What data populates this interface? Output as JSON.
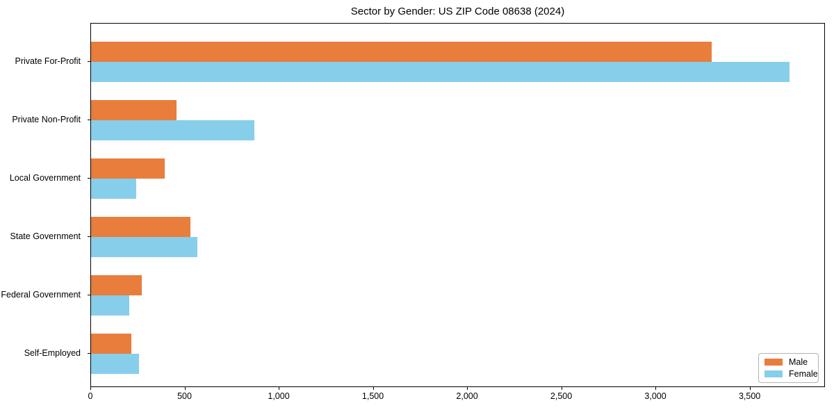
{
  "figure": {
    "title": "Sector by Gender: US ZIP Code 08638 (2024)"
  },
  "chart_data": {
    "type": "bar",
    "orientation": "horizontal",
    "title": "Sector by Gender: US ZIP Code 08638 (2024)",
    "categories": [
      "Private For-Profit",
      "Private Non-Profit",
      "Local Government",
      "State Government",
      "Federal Government",
      "Self-Employed"
    ],
    "series": [
      {
        "name": "Male",
        "color": "#e87d3c",
        "values": [
          3300,
          455,
          390,
          530,
          270,
          215
        ]
      },
      {
        "name": "Female",
        "color": "#87ceeb",
        "values": [
          3715,
          870,
          240,
          565,
          205,
          255
        ]
      }
    ],
    "xlabel": "",
    "ylabel": "",
    "xlim": [
      0,
      3900
    ],
    "xticks": [
      0,
      500,
      1000,
      1500,
      2000,
      2500,
      3000,
      3500
    ],
    "xtick_labels": [
      "0",
      "500",
      "1,000",
      "1,500",
      "2,000",
      "2,500",
      "3,000",
      "3,500"
    ],
    "grid": false,
    "legend_position": "lower right"
  }
}
